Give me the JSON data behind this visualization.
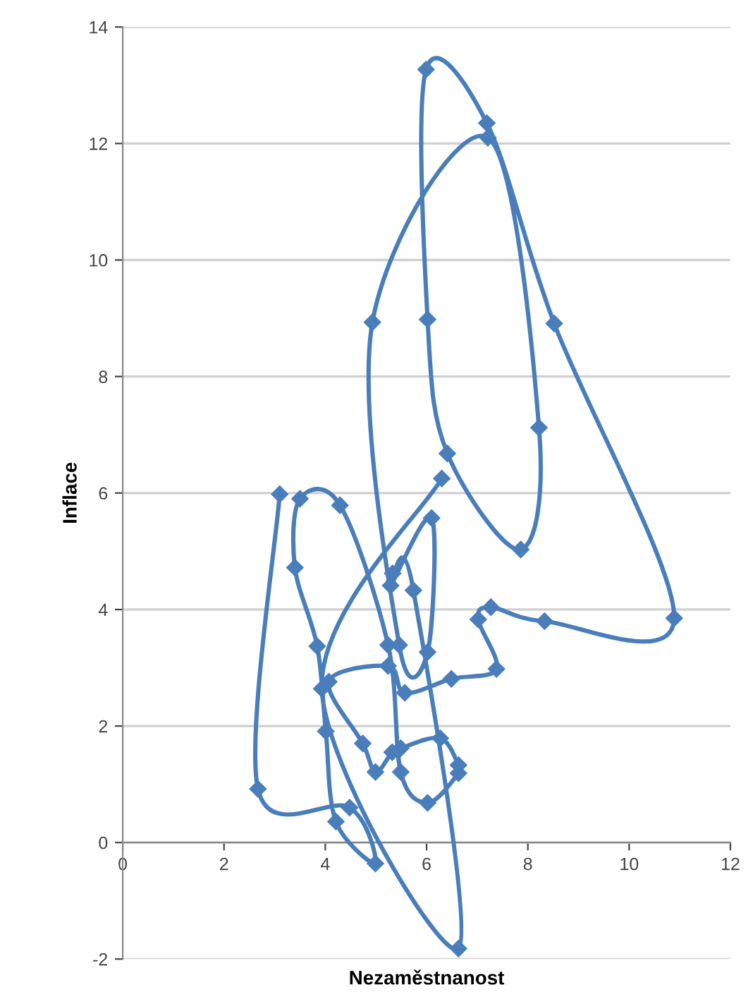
{
  "chart_data": {
    "type": "line",
    "xlabel": "Nezaměstnanost",
    "ylabel": "Inflace",
    "xlim": [
      0,
      12
    ],
    "xticks": [
      0,
      2,
      4,
      6,
      8,
      10,
      12
    ],
    "ylim": [
      -2,
      14
    ],
    "yticks": [
      -2,
      0,
      2,
      4,
      6,
      8,
      10,
      12,
      14
    ],
    "grid": "y",
    "legend": false,
    "marker": "diamond",
    "line_style": "solid",
    "series": [
      {
        "color": "#4a7ebb",
        "x": [
          3.1,
          2.67,
          4.48,
          4.99,
          4.21,
          4.01,
          3.84,
          3.4,
          3.5,
          4.29,
          5.24,
          5.49,
          6.02,
          6.63,
          6.63,
          6.27,
          5.49,
          5.32,
          4.99,
          4.74,
          4.07,
          5.24,
          5.57,
          6.49,
          7.38,
          7.02,
          7.27,
          8.33,
          10.89,
          8.52,
          7.19,
          5.99,
          6.02,
          6.41,
          7.86,
          8.22,
          7.21,
          4.93,
          5.46,
          6.02,
          6.1,
          5.29,
          5.33,
          5.74,
          6.63,
          3.93,
          6.3
        ],
        "values": [
          5.98,
          0.92,
          0.6,
          -0.36,
          0.36,
          1.91,
          3.37,
          4.72,
          5.9,
          5.79,
          3.39,
          1.21,
          0.68,
          1.19,
          1.33,
          1.79,
          1.62,
          1.55,
          1.21,
          1.7,
          2.76,
          3.03,
          2.57,
          2.81,
          2.98,
          3.83,
          4.04,
          3.8,
          3.85,
          8.91,
          12.35,
          13.27,
          8.98,
          6.68,
          5.03,
          7.12,
          12.1,
          8.93,
          3.39,
          3.27,
          5.57,
          4.41,
          4.62,
          4.33,
          -1.82,
          2.64,
          6.25
        ]
      }
    ]
  }
}
